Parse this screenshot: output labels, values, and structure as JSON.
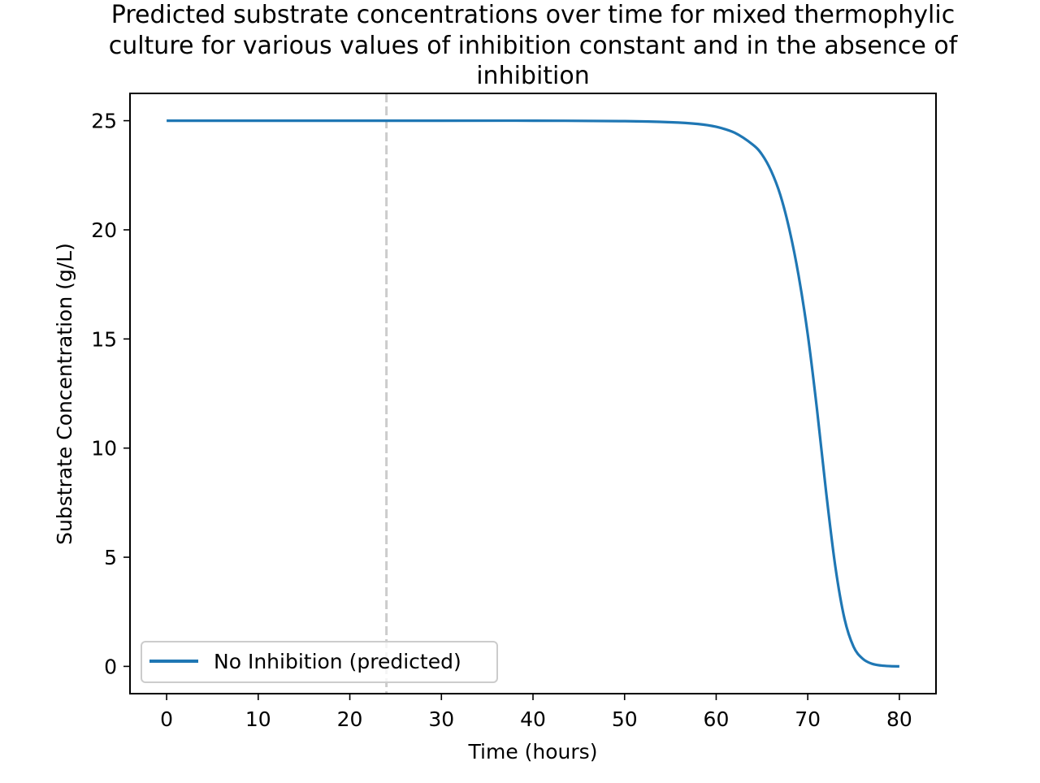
{
  "chart_data": {
    "type": "line",
    "title_lines": [
      "Predicted substrate concentrations over time for mixed thermophylic",
      "culture for various values of inhibition constant and in the absence of",
      "inhibition"
    ],
    "xlabel": "Time (hours)",
    "ylabel": "Substrate Concentration (g/L)",
    "xlim": [
      -4,
      84
    ],
    "ylim": [
      -1.25,
      26.25
    ],
    "xticks": [
      0,
      10,
      20,
      30,
      40,
      50,
      60,
      70,
      80
    ],
    "yticks": [
      0,
      5,
      10,
      15,
      20,
      25
    ],
    "grid": false,
    "legend_position": "lower left",
    "reference_line": {
      "x": 24,
      "style": "dashed",
      "color": "#cccccc"
    },
    "series": [
      {
        "name": "No Inhibition (predicted)",
        "color": "#1f77b4",
        "x": [
          0,
          10,
          20,
          30,
          40,
          50,
          55,
          58,
          60,
          62,
          64,
          65,
          66,
          67,
          68,
          69,
          70,
          71,
          72,
          73,
          74,
          75,
          76,
          77,
          78,
          79,
          80
        ],
        "y": [
          25,
          25,
          25,
          25,
          25,
          24.98,
          24.93,
          24.85,
          24.72,
          24.45,
          23.9,
          23.45,
          22.7,
          21.6,
          20.0,
          17.9,
          15.2,
          11.8,
          8.0,
          4.6,
          2.2,
          0.9,
          0.35,
          0.12,
          0.04,
          0.01,
          0.0
        ]
      }
    ]
  }
}
